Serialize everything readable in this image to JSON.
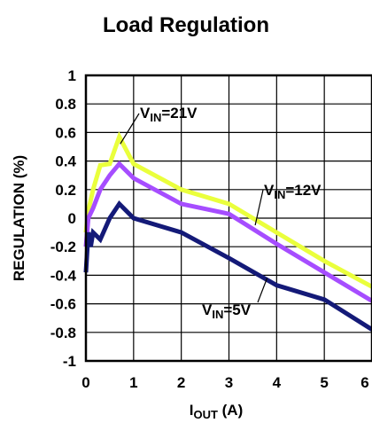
{
  "chart_data": {
    "type": "line",
    "title": "Load Regulation",
    "xlabel": {
      "main": "I",
      "sub": "OUT",
      "suffix": " (A)"
    },
    "ylabel": "REGULATION (%)",
    "xlim": [
      0,
      6
    ],
    "ylim": [
      -1,
      1
    ],
    "x_ticks": [
      "0",
      "1",
      "2",
      "3",
      "4",
      "5",
      "6"
    ],
    "y_ticks": [
      "1",
      "0.8",
      "0.6",
      "0.4",
      "0.2",
      "0",
      "-0.2",
      "-0.4",
      "-0.6",
      "-0.8",
      "-1"
    ],
    "grid": true,
    "series": [
      {
        "name": "VIN=21V",
        "label": {
          "main": "V",
          "sub": "IN",
          "suffix": "=21V"
        },
        "color": "#eaff3c",
        "x": [
          0.0,
          0.05,
          0.15,
          0.3,
          0.5,
          0.7,
          1.0,
          2.0,
          3.0,
          4.0,
          5.0,
          6.0
        ],
        "y": [
          -0.1,
          0.05,
          0.2,
          0.37,
          0.38,
          0.57,
          0.38,
          0.2,
          0.1,
          -0.1,
          -0.3,
          -0.48
        ]
      },
      {
        "name": "VIN=12V",
        "label": {
          "main": "V",
          "sub": "IN",
          "suffix": "=12V"
        },
        "color": "#a64dff",
        "x": [
          0.0,
          0.05,
          0.15,
          0.3,
          0.5,
          0.7,
          1.0,
          2.0,
          3.0,
          4.0,
          5.0,
          6.0
        ],
        "y": [
          -0.2,
          0.0,
          0.07,
          0.2,
          0.3,
          0.38,
          0.28,
          0.1,
          0.03,
          -0.18,
          -0.38,
          -0.58
        ]
      },
      {
        "name": "VIN=5V",
        "label": {
          "main": "V",
          "sub": "IN",
          "suffix": "=5V"
        },
        "color": "#141a78",
        "x": [
          0.0,
          0.05,
          0.1,
          0.15,
          0.3,
          0.5,
          0.7,
          1.0,
          2.0,
          3.0,
          4.0,
          5.0,
          6.0
        ],
        "y": [
          -0.38,
          -0.1,
          -0.2,
          -0.1,
          -0.15,
          0.0,
          0.1,
          0.0,
          -0.1,
          -0.28,
          -0.47,
          -0.57,
          -0.78
        ]
      }
    ]
  }
}
